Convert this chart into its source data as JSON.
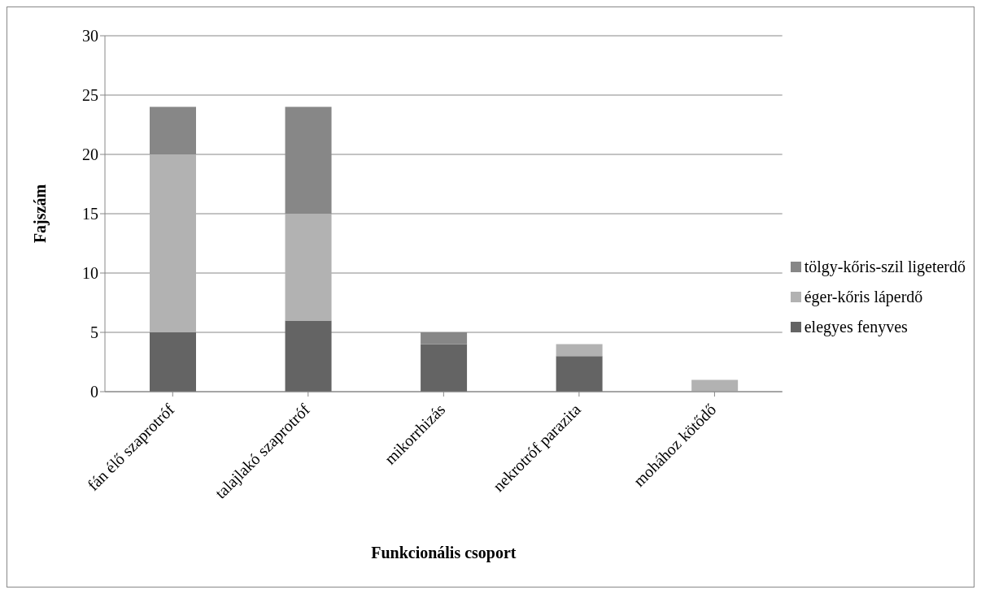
{
  "chart_data": {
    "type": "bar",
    "stacked": true,
    "xlabel": "Funkcionális csoport",
    "ylabel": "Fajszám",
    "categories": [
      "fán élő szaprotróf",
      "talajlakó szaprotróf",
      "mikorrhizás",
      "nekrotróf parazita",
      "mohához kötődő"
    ],
    "series": [
      {
        "name": "elegyes fenyves",
        "color": "#646464",
        "values": [
          5,
          6,
          4,
          3,
          0
        ]
      },
      {
        "name": "éger-kőris láperdő",
        "color": "#b2b2b2",
        "values": [
          15,
          9,
          0,
          1,
          1
        ]
      },
      {
        "name": "tölgy-kőris-szil ligeterdő",
        "color": "#878787",
        "values": [
          4,
          9,
          1,
          0,
          0
        ]
      }
    ],
    "ylim": [
      0,
      30
    ],
    "yticks": [
      0,
      5,
      10,
      15,
      20,
      25,
      30
    ],
    "grid": "y",
    "legend": "right"
  }
}
